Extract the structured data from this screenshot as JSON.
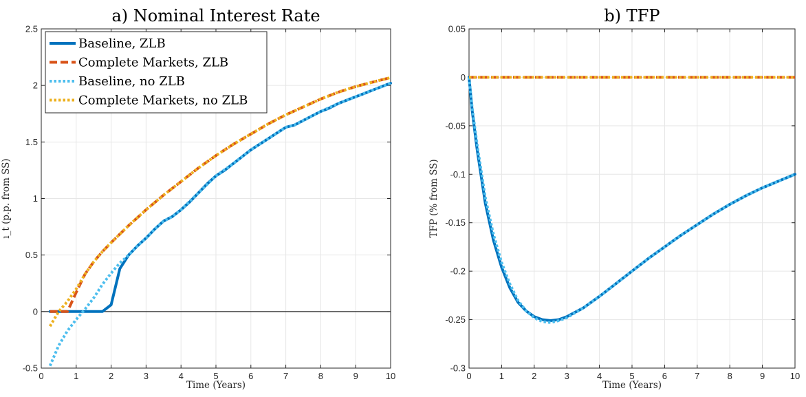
{
  "colors": {
    "baseline_zlb": "#0072BD",
    "complete_zlb": "#D95319",
    "baseline_nozlb": "#4DBEEE",
    "complete_nozlb": "#EDB120",
    "grid": "#e6e6e6",
    "axis": "#262626"
  },
  "chart_data": [
    {
      "type": "line",
      "title": "a) Nominal Interest Rate",
      "xlabel": "Time (Years)",
      "ylabel": "ı_t (p.p. from SS)",
      "xlim": [
        0,
        10
      ],
      "ylim": [
        -0.5,
        2.5
      ],
      "xticks": [
        "0",
        "1",
        "2",
        "3",
        "4",
        "5",
        "6",
        "7",
        "8",
        "9",
        "10"
      ],
      "yticks": [
        "-0.5",
        "0",
        "0.5",
        "1",
        "1.5",
        "2",
        "2.5"
      ],
      "grid": true,
      "zero_line": true,
      "legend": {
        "position": "top-left",
        "entries": [
          "Baseline, ZLB",
          "Complete Markets, ZLB",
          "Baseline, no ZLB",
          "Complete Markets, no ZLB"
        ]
      },
      "series": [
        {
          "name": "Baseline, ZLB",
          "style": "solid",
          "color": "#0072BD",
          "x": [
            0.25,
            0.5,
            0.75,
            1.0,
            1.25,
            1.5,
            1.75,
            2.0,
            2.25,
            2.5,
            2.75,
            3.0,
            3.25,
            3.5,
            3.75,
            4.0,
            4.25,
            4.5,
            4.75,
            5.0,
            5.25,
            5.5,
            5.75,
            6.0,
            6.25,
            6.5,
            6.75,
            7.0,
            7.25,
            7.5,
            7.75,
            8.0,
            8.25,
            8.5,
            8.75,
            9.0,
            9.25,
            9.5,
            9.75,
            10.0
          ],
          "y": [
            0,
            0,
            0,
            0,
            0,
            0,
            0,
            0.06,
            0.38,
            0.5,
            0.58,
            0.65,
            0.73,
            0.8,
            0.84,
            0.9,
            0.97,
            1.05,
            1.13,
            1.2,
            1.25,
            1.31,
            1.37,
            1.43,
            1.48,
            1.53,
            1.58,
            1.63,
            1.65,
            1.69,
            1.73,
            1.77,
            1.8,
            1.84,
            1.87,
            1.9,
            1.93,
            1.96,
            1.99,
            2.02
          ]
        },
        {
          "name": "Complete Markets, ZLB",
          "style": "dashed",
          "color": "#D95319",
          "x": [
            0.25,
            0.5,
            0.75,
            1.0,
            1.25,
            1.5,
            1.75,
            2.0,
            2.5,
            3.0,
            3.5,
            4.0,
            4.5,
            5.0,
            5.5,
            6.0,
            6.5,
            7.0,
            7.5,
            8.0,
            8.5,
            9.0,
            9.5,
            10.0
          ],
          "y": [
            0,
            0,
            0,
            0.17,
            0.33,
            0.44,
            0.53,
            0.61,
            0.76,
            0.9,
            1.03,
            1.15,
            1.27,
            1.38,
            1.48,
            1.57,
            1.66,
            1.74,
            1.81,
            1.88,
            1.94,
            1.99,
            2.03,
            2.07
          ]
        },
        {
          "name": "Baseline, no ZLB",
          "style": "dotted",
          "color": "#4DBEEE",
          "x": [
            0.25,
            0.5,
            0.75,
            1.0,
            1.25,
            1.5,
            1.75,
            2.0,
            2.25,
            2.5,
            2.75,
            3.0,
            3.25,
            3.5,
            3.75,
            4.0,
            4.5,
            5.0,
            5.5,
            6.0,
            6.5,
            7.0,
            7.25,
            7.5,
            8.0,
            8.5,
            9.0,
            9.5,
            10.0
          ],
          "y": [
            -0.48,
            -0.3,
            -0.17,
            -0.07,
            0.02,
            0.12,
            0.24,
            0.34,
            0.43,
            0.5,
            0.58,
            0.65,
            0.73,
            0.8,
            0.84,
            0.9,
            1.05,
            1.2,
            1.31,
            1.43,
            1.53,
            1.63,
            1.65,
            1.69,
            1.77,
            1.84,
            1.9,
            1.96,
            2.02
          ]
        },
        {
          "name": "Complete Markets, no ZLB",
          "style": "dotted",
          "color": "#EDB120",
          "x": [
            0.25,
            0.5,
            0.75,
            1.0,
            1.25,
            1.5,
            1.75,
            2.0,
            2.5,
            3.0,
            3.5,
            4.0,
            4.5,
            5.0,
            5.5,
            6.0,
            6.5,
            7.0,
            7.5,
            8.0,
            8.5,
            9.0,
            9.5,
            10.0
          ],
          "y": [
            -0.13,
            0.0,
            0.09,
            0.2,
            0.33,
            0.44,
            0.53,
            0.61,
            0.76,
            0.9,
            1.03,
            1.15,
            1.27,
            1.38,
            1.48,
            1.57,
            1.66,
            1.74,
            1.81,
            1.88,
            1.94,
            1.99,
            2.03,
            2.07
          ]
        }
      ]
    },
    {
      "type": "line",
      "title": "b) TFP",
      "xlabel": "Time (Years)",
      "ylabel": "TFP (% from SS)",
      "xlim": [
        0,
        10
      ],
      "ylim": [
        -0.3,
        0.05
      ],
      "xticks": [
        "0",
        "1",
        "2",
        "3",
        "4",
        "5",
        "6",
        "7",
        "8",
        "9",
        "10"
      ],
      "yticks": [
        "-0.3",
        "-0.25",
        "-0.2",
        "-0.15",
        "-0.1",
        "-0.05",
        "0",
        "0.05"
      ],
      "grid": true,
      "zero_line": false,
      "series": [
        {
          "name": "Baseline, ZLB",
          "style": "solid",
          "color": "#0072BD",
          "x": [
            0,
            0.1,
            0.25,
            0.5,
            0.75,
            1.0,
            1.25,
            1.5,
            1.75,
            2.0,
            2.25,
            2.5,
            2.75,
            3.0,
            3.5,
            4.0,
            4.5,
            5.0,
            5.5,
            6.0,
            6.5,
            7.0,
            7.5,
            8.0,
            8.5,
            9.0,
            9.5,
            10.0
          ],
          "y": [
            0,
            -0.035,
            -0.075,
            -0.13,
            -0.168,
            -0.196,
            -0.217,
            -0.232,
            -0.241,
            -0.247,
            -0.25,
            -0.251,
            -0.25,
            -0.247,
            -0.238,
            -0.226,
            -0.213,
            -0.2,
            -0.187,
            -0.175,
            -0.163,
            -0.152,
            -0.141,
            -0.131,
            -0.122,
            -0.114,
            -0.107,
            -0.1
          ]
        },
        {
          "name": "Complete Markets, ZLB",
          "style": "dashed",
          "color": "#D95319",
          "x": [
            0,
            10
          ],
          "y": [
            0,
            0
          ]
        },
        {
          "name": "Baseline, no ZLB",
          "style": "dotted",
          "color": "#4DBEEE",
          "x": [
            0,
            0.1,
            0.25,
            0.5,
            0.75,
            1.0,
            1.25,
            1.5,
            1.75,
            2.0,
            2.25,
            2.5,
            2.75,
            3.0,
            3.5,
            4.0,
            4.5,
            5.0,
            5.5,
            6.0,
            6.5,
            7.0,
            7.5,
            8.0,
            8.5,
            9.0,
            9.5,
            10.0
          ],
          "y": [
            0,
            -0.032,
            -0.07,
            -0.124,
            -0.162,
            -0.191,
            -0.213,
            -0.23,
            -0.241,
            -0.248,
            -0.252,
            -0.253,
            -0.251,
            -0.248,
            -0.238,
            -0.226,
            -0.213,
            -0.2,
            -0.187,
            -0.175,
            -0.163,
            -0.152,
            -0.141,
            -0.131,
            -0.122,
            -0.114,
            -0.107,
            -0.1
          ]
        },
        {
          "name": "Complete Markets, no ZLB",
          "style": "dotted",
          "color": "#EDB120",
          "x": [
            0,
            10
          ],
          "y": [
            0,
            0
          ]
        }
      ]
    }
  ]
}
